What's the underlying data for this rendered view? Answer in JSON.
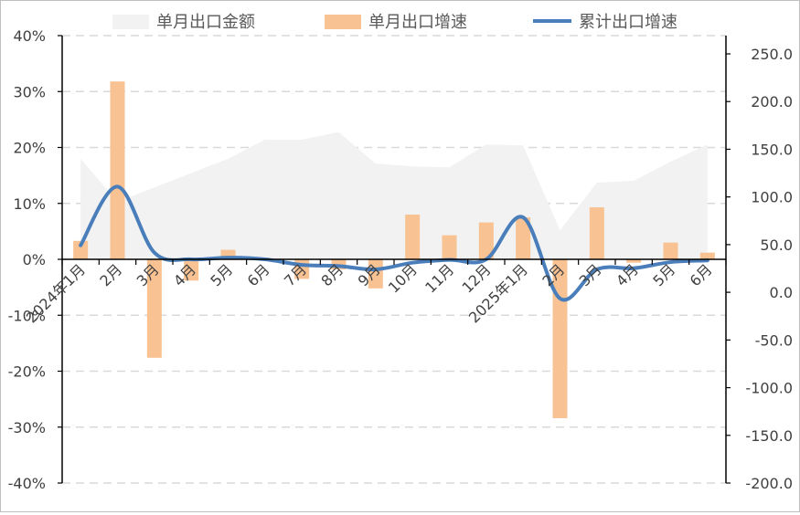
{
  "chart_data": {
    "type": "bar",
    "categories": [
      "2024年1月",
      "2月",
      "3月",
      "4月",
      "5月",
      "6月",
      "7月",
      "8月",
      "9月",
      "10月",
      "11月",
      "12月",
      "2025年1月",
      "2月",
      "3月",
      "4月",
      "5月",
      "6月"
    ],
    "series": [
      {
        "name": "单月出口金额",
        "kind": "area",
        "axis": "right",
        "color": "#f2f2f2",
        "values": [
          140,
          95,
          110,
          125,
          140,
          160,
          160,
          168,
          135,
          132,
          131,
          155,
          154,
          65,
          115,
          117,
          137,
          155
        ]
      },
      {
        "name": "单月出口增速",
        "kind": "bar",
        "axis": "left",
        "color": "#f8c293",
        "values": [
          3.3,
          31.8,
          -17.6,
          -3.8,
          1.7,
          0.0,
          -3.5,
          -1.8,
          -5.2,
          8.0,
          4.3,
          6.6,
          7.5,
          -28.4,
          9.3,
          -0.6,
          3.0,
          1.2
        ]
      },
      {
        "name": "累计出口增速",
        "kind": "line",
        "axis": "left",
        "color": "#4a7ebb",
        "values": [
          2.5,
          13.0,
          1.2,
          0.0,
          0.3,
          0.0,
          -1.0,
          -1.2,
          -1.8,
          -0.6,
          -0.1,
          0.0,
          7.5,
          -7.0,
          -1.8,
          -1.6,
          -0.5,
          -0.2
        ]
      }
    ],
    "y_left": {
      "min": -40,
      "max": 40,
      "step": 10,
      "ticks": [
        "-40%",
        "-30%",
        "-20%",
        "-10%",
        "0%",
        "10%",
        "20%",
        "30%",
        "40%"
      ]
    },
    "y_right": {
      "min": -200,
      "max": 250,
      "step": 50,
      "ticks": [
        "-200.0",
        "-150.0",
        "-100.0",
        "-50.0",
        "0.0",
        "50.0",
        "100.0",
        "150.0",
        "200.0",
        "250.0"
      ]
    },
    "grid": true,
    "legend_position": "top"
  }
}
